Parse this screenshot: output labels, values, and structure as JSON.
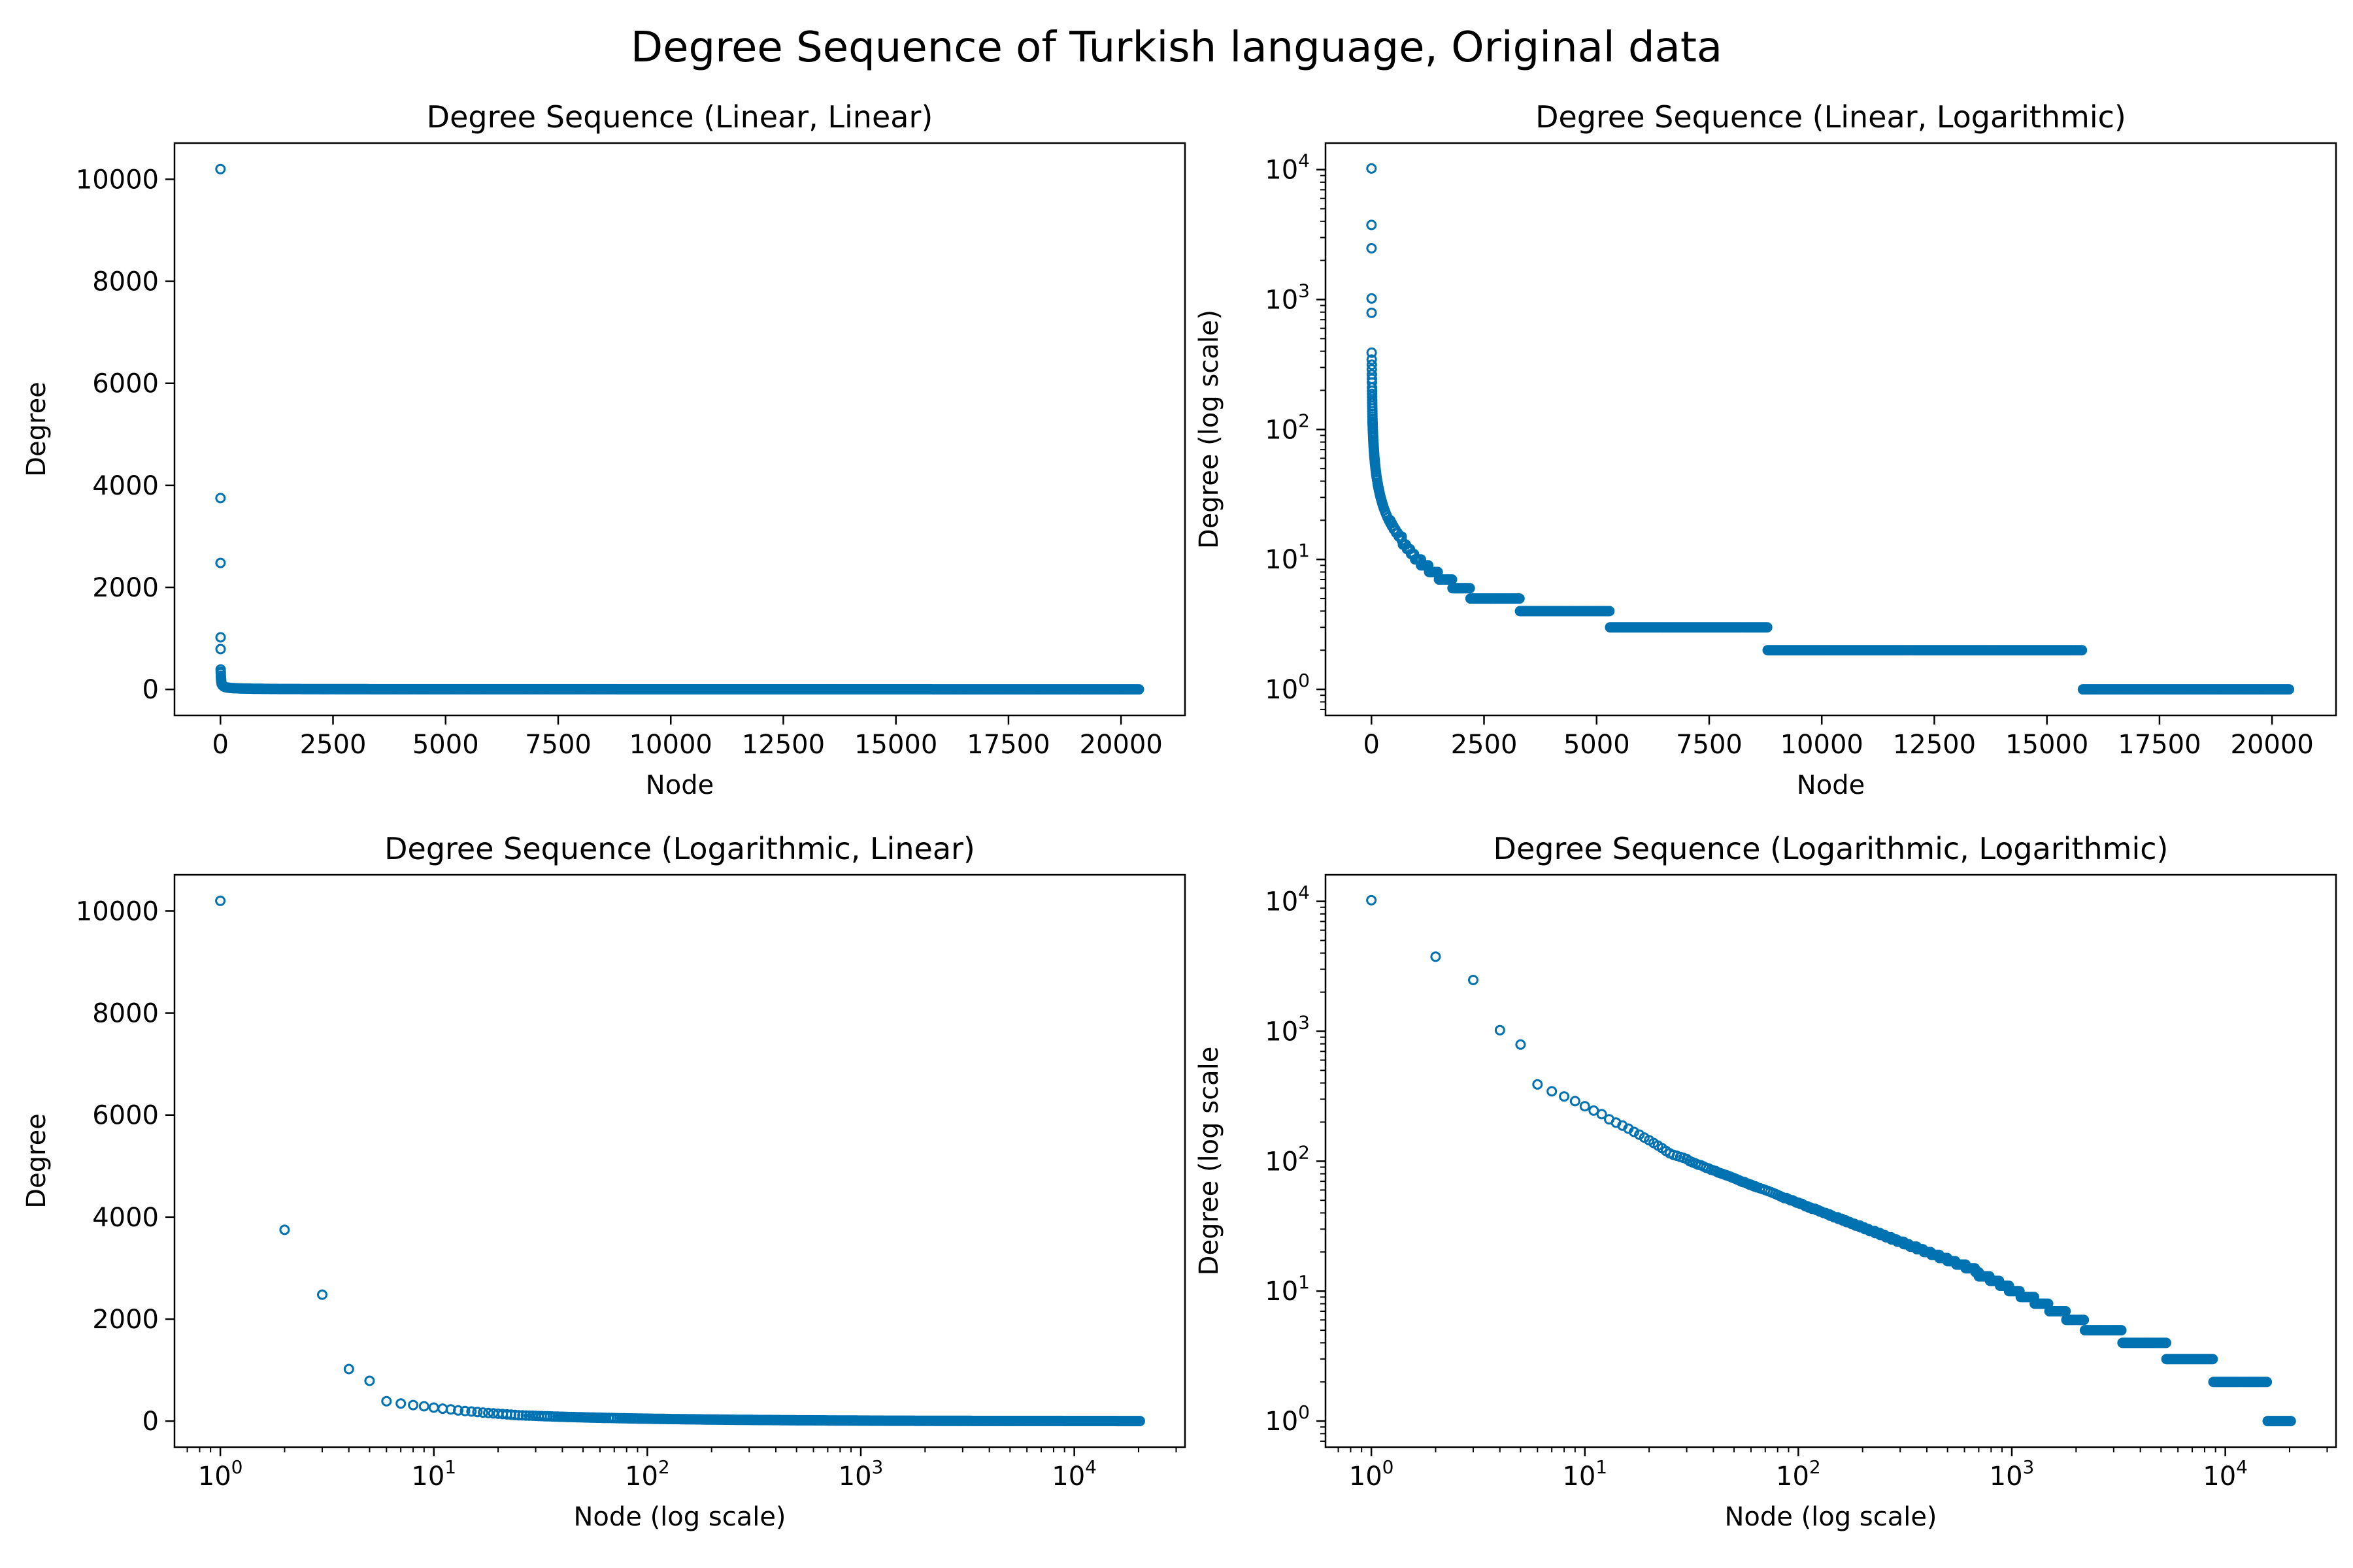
{
  "figure_title": "Degree Sequence of Turkish language, Original data",
  "colors": {
    "marker": "#0072B2",
    "axes": "#000000",
    "background": "#ffffff"
  },
  "chart_data": [
    {
      "type": "scatter",
      "title": "Degree Sequence (Linear, Linear)",
      "xlabel": "Node",
      "ylabel": "Degree",
      "xscale": "linear",
      "yscale": "linear",
      "xlim": [
        -1020,
        21420
      ],
      "ylim": [
        -510,
        10710
      ],
      "xticks": [
        0,
        2500,
        5000,
        7500,
        10000,
        12500,
        15000,
        17500,
        20000
      ],
      "xtick_labels": [
        "0",
        "2500",
        "5000",
        "7500",
        "10000",
        "12500",
        "15000",
        "17500",
        "20000"
      ],
      "yticks": [
        0,
        2000,
        4000,
        6000,
        8000,
        10000
      ],
      "ytick_labels": [
        "0",
        "2000",
        "4000",
        "6000",
        "8000",
        "10000"
      ],
      "grid": false,
      "legend": "none",
      "x_offset": 0
    },
    {
      "type": "scatter",
      "title": "Degree Sequence (Linear, Logarithmic)",
      "xlabel": "Node",
      "ylabel": "Degree (log scale)",
      "xscale": "linear",
      "yscale": "log",
      "xlim": [
        -1020,
        21420
      ],
      "ylim": [
        0.63,
        16000
      ],
      "xticks": [
        0,
        2500,
        5000,
        7500,
        10000,
        12500,
        15000,
        17500,
        20000
      ],
      "xtick_labels": [
        "0",
        "2500",
        "5000",
        "7500",
        "10000",
        "12500",
        "15000",
        "17500",
        "20000"
      ],
      "yticks": [
        1,
        10,
        100,
        1000,
        10000
      ],
      "ytick_labels": [
        "10^0",
        "10^1",
        "10^2",
        "10^3",
        "10^4"
      ],
      "grid": false,
      "legend": "none",
      "x_offset": 0
    },
    {
      "type": "scatter",
      "title": "Degree Sequence (Logarithmic, Linear)",
      "xlabel": "Node (log scale)",
      "ylabel": "Degree",
      "xscale": "log",
      "yscale": "linear",
      "xlim": [
        0.61,
        33000
      ],
      "ylim": [
        -510,
        10710
      ],
      "xticks": [
        1,
        10,
        100,
        1000,
        10000
      ],
      "xtick_labels": [
        "10^0",
        "10^1",
        "10^2",
        "10^3",
        "10^4"
      ],
      "yticks": [
        0,
        2000,
        4000,
        6000,
        8000,
        10000
      ],
      "ytick_labels": [
        "0",
        "2000",
        "4000",
        "6000",
        "8000",
        "10000"
      ],
      "grid": false,
      "legend": "none",
      "x_offset": 1
    },
    {
      "type": "scatter",
      "title": "Degree Sequence (Logarithmic, Logarithmic)",
      "xlabel": "Node (log scale)",
      "ylabel": "Degree (log scale",
      "xscale": "log",
      "yscale": "log",
      "xlim": [
        0.61,
        33000
      ],
      "ylim": [
        0.63,
        16000
      ],
      "xticks": [
        1,
        10,
        100,
        1000,
        10000
      ],
      "xtick_labels": [
        "10^0",
        "10^1",
        "10^2",
        "10^3",
        "10^4"
      ],
      "yticks": [
        1,
        10,
        100,
        1000,
        10000
      ],
      "ytick_labels": [
        "10^0",
        "10^1",
        "10^2",
        "10^3",
        "10^4"
      ],
      "grid": false,
      "legend": "none",
      "x_offset": 1
    }
  ],
  "degree_sequence": {
    "description": "Degrees sorted descending; node index 0..20399",
    "node_count": 20400,
    "head": [
      10200,
      3750,
      2480,
      1020,
      790,
      390,
      345,
      315,
      290,
      265,
      245,
      230,
      210,
      198,
      188,
      178,
      168,
      160,
      152,
      145,
      138,
      132,
      126,
      120,
      115,
      112,
      110,
      108,
      106,
      104
    ],
    "tail_powerlaw": {
      "from_rank": 30,
      "to_rank": 700,
      "degree_at_from": 100,
      "degree_at_to": 14,
      "exponent": 0.62
    },
    "plateaus": [
      {
        "degree": 13,
        "from": 700,
        "to": 790
      },
      {
        "degree": 12,
        "from": 790,
        "to": 880
      },
      {
        "degree": 11,
        "from": 880,
        "to": 970
      },
      {
        "degree": 10,
        "from": 970,
        "to": 1100
      },
      {
        "degree": 9,
        "from": 1100,
        "to": 1280
      },
      {
        "degree": 8,
        "from": 1280,
        "to": 1500
      },
      {
        "degree": 7,
        "from": 1500,
        "to": 1800
      },
      {
        "degree": 6,
        "from": 1800,
        "to": 2200
      },
      {
        "degree": 5,
        "from": 2200,
        "to": 3300
      },
      {
        "degree": 4,
        "from": 3300,
        "to": 5300
      },
      {
        "degree": 3,
        "from": 5300,
        "to": 8800
      },
      {
        "degree": 2,
        "from": 8800,
        "to": 15800
      },
      {
        "degree": 1,
        "from": 15800,
        "to": 20400
      }
    ]
  }
}
